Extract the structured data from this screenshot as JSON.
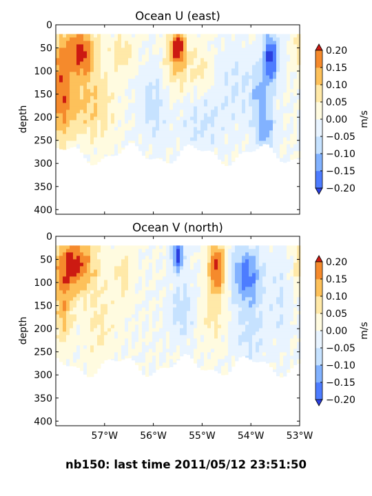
{
  "footer": "nb150: last time 2011/05/12 23:51:50",
  "colorbar": {
    "label": "m/s",
    "levels": [
      -0.2,
      -0.15,
      -0.1,
      -0.05,
      0.0,
      0.05,
      0.1,
      0.15,
      0.2
    ],
    "tick_labels": [
      "−0.20",
      "−0.15",
      "−0.10",
      "−0.05",
      "0.00",
      "0.05",
      "0.10",
      "0.15",
      "0.20"
    ],
    "colors": [
      "#2a3fe0",
      "#4d7cff",
      "#82b2ff",
      "#c6e2ff",
      "#e9f4ff",
      "#fffbe0",
      "#ffe9a8",
      "#fdc15a",
      "#f58a2c",
      "#e8481c",
      "#cc1a12"
    ]
  },
  "chart_data": [
    {
      "type": "heatmap",
      "title": "Ocean U (east)",
      "ylabel": "depth",
      "ylim": [
        410,
        0
      ],
      "xlim": [
        -58.0,
        -53.0
      ],
      "y_ticks": [
        0,
        50,
        100,
        150,
        200,
        250,
        300,
        350,
        400
      ],
      "y_tick_labels": [
        "0",
        "50",
        "100",
        "150",
        "200",
        "250",
        "300",
        "350",
        "400"
      ],
      "x_ticks": [
        -57,
        -56,
        -55,
        -54,
        -53
      ],
      "x_tick_labels": [],
      "colorbar_label": "m/s",
      "data_depth_range": [
        20,
        300
      ],
      "features": [
        {
          "lon": -57.5,
          "depth": 60,
          "lon_radius": 0.3,
          "depth_radius": 60,
          "value": 0.22
        },
        {
          "lon": -57.9,
          "depth": 130,
          "lon_radius": 0.2,
          "depth_radius": 120,
          "value": 0.16
        },
        {
          "lon": -57.6,
          "depth": 180,
          "lon_radius": 0.4,
          "depth_radius": 60,
          "value": 0.09
        },
        {
          "lon": -57.1,
          "depth": 170,
          "lon_radius": 0.35,
          "depth_radius": 80,
          "value": 0.07
        },
        {
          "lon": -56.6,
          "depth": 60,
          "lon_radius": 0.25,
          "depth_radius": 40,
          "value": 0.08
        },
        {
          "lon": -55.5,
          "depth": 45,
          "lon_radius": 0.15,
          "depth_radius": 35,
          "value": 0.22
        },
        {
          "lon": -55.5,
          "depth": 90,
          "lon_radius": 0.3,
          "depth_radius": 60,
          "value": 0.09
        },
        {
          "lon": -55.0,
          "depth": 100,
          "lon_radius": 0.2,
          "depth_radius": 60,
          "value": 0.06
        },
        {
          "lon": -56.0,
          "depth": 170,
          "lon_radius": 0.3,
          "depth_radius": 80,
          "value": -0.07
        },
        {
          "lon": -55.0,
          "depth": 210,
          "lon_radius": 0.4,
          "depth_radius": 70,
          "value": -0.06
        },
        {
          "lon": -54.3,
          "depth": 130,
          "lon_radius": 0.4,
          "depth_radius": 90,
          "value": -0.05
        },
        {
          "lon": -53.6,
          "depth": 70,
          "lon_radius": 0.15,
          "depth_radius": 55,
          "value": -0.22
        },
        {
          "lon": -53.8,
          "depth": 150,
          "lon_radius": 0.2,
          "depth_radius": 60,
          "value": -0.1
        },
        {
          "lon": -53.7,
          "depth": 230,
          "lon_radius": 0.2,
          "depth_radius": 50,
          "value": -0.12
        },
        {
          "lon": -53.05,
          "depth": 50,
          "lon_radius": 0.08,
          "depth_radius": 40,
          "value": 0.09
        }
      ]
    },
    {
      "type": "heatmap",
      "title": "Ocean V (north)",
      "ylabel": "depth",
      "ylim": [
        410,
        0
      ],
      "xlim": [
        -58.0,
        -53.0
      ],
      "y_ticks": [
        0,
        50,
        100,
        150,
        200,
        250,
        300,
        350,
        400
      ],
      "y_tick_labels": [
        "0",
        "50",
        "100",
        "150",
        "200",
        "250",
        "300",
        "350",
        "400"
      ],
      "x_ticks": [
        -57,
        -56,
        -55,
        -54,
        -53
      ],
      "x_tick_labels": [
        "57°W",
        "56°W",
        "55°W",
        "54°W",
        "53°W"
      ],
      "colorbar_label": "m/s",
      "data_depth_range": [
        20,
        300
      ],
      "features": [
        {
          "lon": -57.6,
          "depth": 60,
          "lon_radius": 0.4,
          "depth_radius": 60,
          "value": 0.22
        },
        {
          "lon": -57.85,
          "depth": 150,
          "lon_radius": 0.2,
          "depth_radius": 90,
          "value": 0.12
        },
        {
          "lon": -57.1,
          "depth": 190,
          "lon_radius": 0.3,
          "depth_radius": 90,
          "value": 0.06
        },
        {
          "lon": -56.6,
          "depth": 80,
          "lon_radius": 0.2,
          "depth_radius": 60,
          "value": 0.07
        },
        {
          "lon": -55.5,
          "depth": 40,
          "lon_radius": 0.12,
          "depth_radius": 35,
          "value": -0.22
        },
        {
          "lon": -55.4,
          "depth": 160,
          "lon_radius": 0.25,
          "depth_radius": 60,
          "value": -0.08
        },
        {
          "lon": -54.7,
          "depth": 70,
          "lon_radius": 0.18,
          "depth_radius": 60,
          "value": 0.22
        },
        {
          "lon": -54.8,
          "depth": 180,
          "lon_radius": 0.25,
          "depth_radius": 60,
          "value": 0.06
        },
        {
          "lon": -54.1,
          "depth": 80,
          "lon_radius": 0.3,
          "depth_radius": 60,
          "value": -0.17
        },
        {
          "lon": -54.0,
          "depth": 200,
          "lon_radius": 0.3,
          "depth_radius": 80,
          "value": -0.07
        },
        {
          "lon": -53.4,
          "depth": 140,
          "lon_radius": 0.2,
          "depth_radius": 100,
          "value": -0.05
        },
        {
          "lon": -53.05,
          "depth": 60,
          "lon_radius": 0.08,
          "depth_radius": 50,
          "value": 0.08
        }
      ]
    }
  ]
}
